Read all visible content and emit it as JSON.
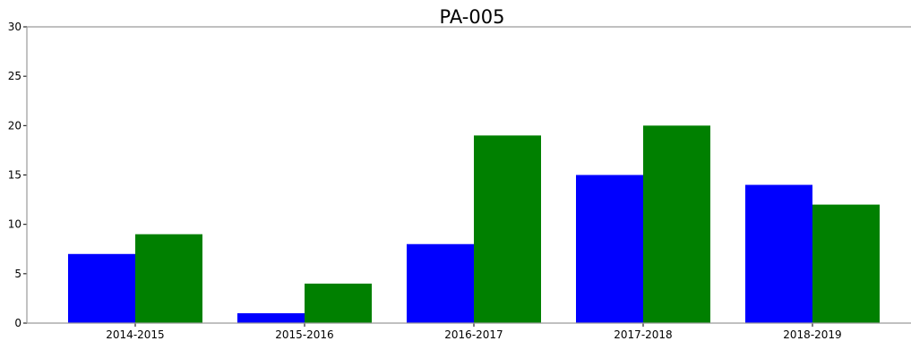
{
  "chart_data": {
    "type": "bar",
    "title": "PA-005",
    "xlabel": "",
    "ylabel": "",
    "categories": [
      "2014-2015",
      "2015-2016",
      "2016-2017",
      "2017-2018",
      "2018-2019"
    ],
    "series": [
      {
        "color": "#0000ff",
        "values": [
          7,
          1,
          8,
          15,
          14
        ]
      },
      {
        "color": "#008000",
        "values": [
          9,
          4,
          19,
          20,
          12
        ]
      }
    ],
    "ylim": [
      0,
      30
    ],
    "yticks": [
      0,
      5,
      10,
      15,
      20,
      25,
      30
    ],
    "yticklabels": [
      "0",
      "5",
      "10",
      "15",
      "20",
      "25",
      "30"
    ],
    "grid": false,
    "legend": "none"
  }
}
